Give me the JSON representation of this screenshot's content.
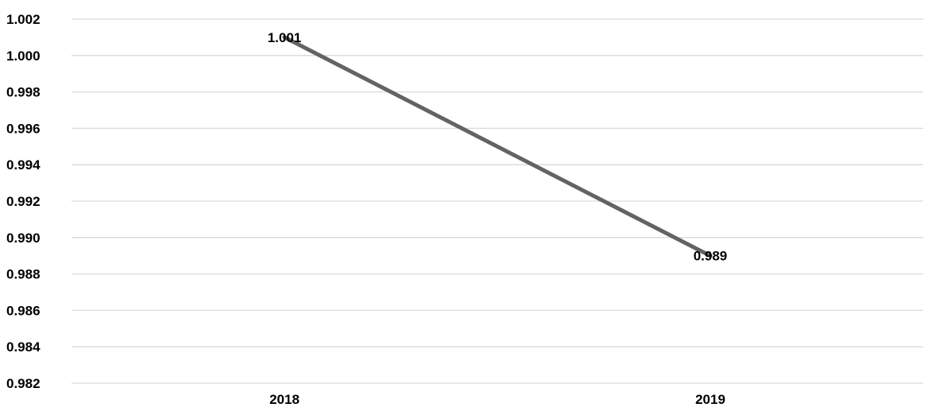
{
  "chart_data": {
    "type": "line",
    "categories": [
      "2018",
      "2019"
    ],
    "series": [
      {
        "values": [
          1.001,
          0.989
        ],
        "data_labels": [
          "1.001",
          "0.989"
        ]
      }
    ],
    "ylim": [
      0.982,
      1.002
    ],
    "y_ticks": [
      1.002,
      1.0,
      0.998,
      0.996,
      0.994,
      0.992,
      0.99,
      0.988,
      0.986,
      0.984,
      0.982
    ],
    "y_tick_labels": [
      "1.002",
      "1.000",
      "0.998",
      "0.996",
      "0.994",
      "0.992",
      "0.990",
      "0.988",
      "0.986",
      "0.984",
      "0.982"
    ],
    "grid": true,
    "legend": "none",
    "colors": {
      "line": "#636363",
      "grid": "#d9d9d9",
      "text": "#000000"
    }
  }
}
